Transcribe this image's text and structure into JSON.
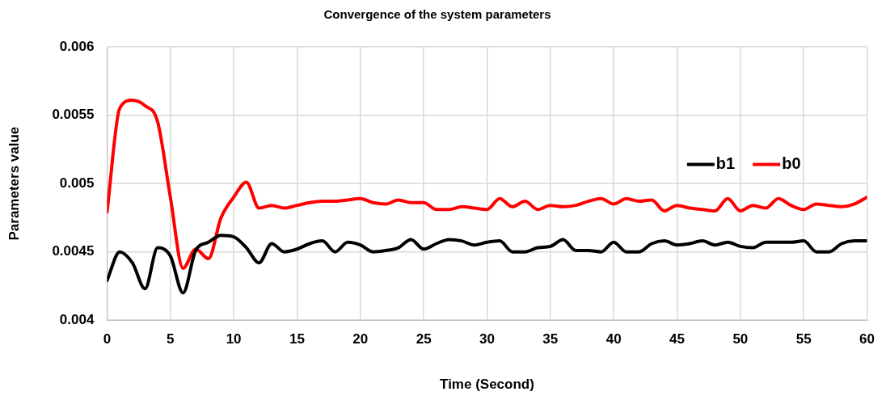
{
  "chart_data": {
    "type": "line",
    "title": "Convergence of the system parameters",
    "xlabel": "Time (Second)",
    "ylabel": "Parameters value",
    "x": [
      0,
      1,
      2,
      3,
      4,
      5,
      6,
      7,
      8,
      9,
      10,
      11,
      12,
      13,
      14,
      15,
      16,
      17,
      18,
      19,
      20,
      21,
      22,
      23,
      24,
      25,
      26,
      27,
      28,
      29,
      30,
      31,
      32,
      33,
      34,
      35,
      36,
      37,
      38,
      39,
      40,
      41,
      42,
      43,
      44,
      45,
      46,
      47,
      48,
      49,
      50,
      51,
      52,
      53,
      54,
      55,
      56,
      57,
      58,
      59,
      60
    ],
    "series": [
      {
        "name": "b1",
        "color": "#000000",
        "values": [
          0.00429,
          0.0045,
          0.00442,
          0.00423,
          0.00453,
          0.00447,
          0.0042,
          0.00451,
          0.00457,
          0.00462,
          0.00461,
          0.00453,
          0.00442,
          0.00456,
          0.0045,
          0.00452,
          0.00456,
          0.00458,
          0.0045,
          0.00457,
          0.00455,
          0.0045,
          0.00451,
          0.00453,
          0.00459,
          0.00452,
          0.00456,
          0.00459,
          0.00458,
          0.00455,
          0.00457,
          0.00458,
          0.0045,
          0.0045,
          0.00453,
          0.00454,
          0.00459,
          0.00451,
          0.00451,
          0.0045,
          0.00457,
          0.0045,
          0.0045,
          0.00456,
          0.00458,
          0.00455,
          0.00456,
          0.00458,
          0.00455,
          0.00457,
          0.00454,
          0.00453,
          0.00457,
          0.00457,
          0.00457,
          0.00458,
          0.0045,
          0.0045,
          0.00456,
          0.00458,
          0.00458
        ]
      },
      {
        "name": "b0",
        "color": "#ff0000",
        "values": [
          0.00479,
          0.00555,
          0.00561,
          0.00557,
          0.00545,
          0.0049,
          0.00438,
          0.00452,
          0.00445,
          0.00475,
          0.0049,
          0.00501,
          0.00482,
          0.00484,
          0.00482,
          0.00484,
          0.00486,
          0.00487,
          0.00487,
          0.00488,
          0.00489,
          0.00486,
          0.00485,
          0.00488,
          0.00486,
          0.00486,
          0.00481,
          0.00481,
          0.00483,
          0.00482,
          0.00481,
          0.00489,
          0.00483,
          0.00487,
          0.00481,
          0.00484,
          0.00483,
          0.00484,
          0.00487,
          0.00489,
          0.00485,
          0.00489,
          0.00487,
          0.00488,
          0.0048,
          0.00484,
          0.00482,
          0.00481,
          0.0048,
          0.00489,
          0.0048,
          0.00484,
          0.00482,
          0.00489,
          0.00484,
          0.00481,
          0.00485,
          0.00484,
          0.00483,
          0.00485,
          0.0049
        ]
      }
    ],
    "xlim": [
      0,
      60
    ],
    "xticks": [
      0,
      5,
      10,
      15,
      20,
      25,
      30,
      35,
      40,
      45,
      50,
      55,
      60
    ],
    "ylim": [
      0.004,
      0.006
    ],
    "yticks": [
      0.004,
      0.0045,
      0.005,
      0.0055,
      0.006
    ],
    "grid": true,
    "legend": "top right",
    "marker": "none",
    "line_style": "solid"
  }
}
